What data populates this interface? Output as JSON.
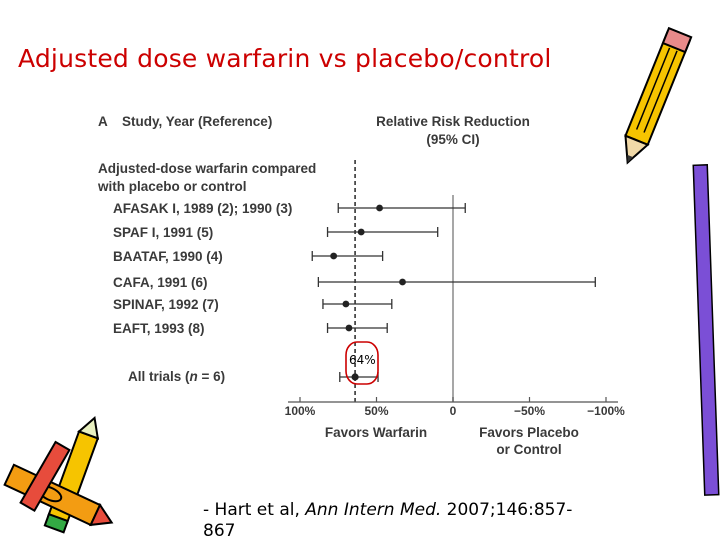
{
  "slide": {
    "title": "Adjusted dose warfarin vs placebo/control",
    "citation": {
      "prefix": "- Hart et al, ",
      "journal": "Ann Intern Med.",
      "suffix": " 2007;146:857-867"
    }
  },
  "colors": {
    "title": "#cc0000",
    "annotation": "#cc0000",
    "text": "#3a3a3a"
  },
  "chart_data": {
    "type": "forest",
    "panel_label": "A",
    "column_header_left": "Study, Year (Reference)",
    "column_header_right_line1": "Relative Risk Reduction",
    "column_header_right_line2": "(95% CI)",
    "group_header_line1": "Adjusted-dose warfarin compared",
    "group_header_line2": "with placebo or control",
    "studies": [
      {
        "name": "AFASAK I, 1989 (2); 1990 (3)",
        "rrr": 48,
        "ci_low": -8,
        "ci_high": 75
      },
      {
        "name": "SPAF I, 1991 (5)",
        "rrr": 60,
        "ci_low": 10,
        "ci_high": 82
      },
      {
        "name": "BAATAF, 1990 (4)",
        "rrr": 78,
        "ci_low": 46,
        "ci_high": 92
      },
      {
        "name": "CAFA, 1991 (6)",
        "rrr": 33,
        "ci_low": -93,
        "ci_high": 88
      },
      {
        "name": "SPINAF, 1992 (7)",
        "rrr": 70,
        "ci_low": 40,
        "ci_high": 85
      },
      {
        "name": "EAFT, 1993 (8)",
        "rrr": 68,
        "ci_low": 43,
        "ci_high": 82
      }
    ],
    "pooled": {
      "label_prefix": "All trials (",
      "label_n": "n",
      "label_suffix": " = 6)",
      "rrr": 64,
      "ci_low": 49,
      "ci_high": 74
    },
    "annotation": "64%",
    "reference_line": 0,
    "dashed_line": 64,
    "x_axis": {
      "min": -100,
      "max": 100,
      "reversed": true,
      "ticks": [
        100,
        50,
        0,
        -50,
        -100
      ],
      "tick_labels": [
        "100%",
        "50%",
        "0",
        "−50%",
        "−100%"
      ]
    },
    "favors_left": "Favors Warfarin",
    "favors_right_line1": "Favors Placebo",
    "favors_right_line2": "or Control"
  },
  "decorations": {
    "icons": [
      "pencil-icon",
      "crayons-icon"
    ]
  }
}
